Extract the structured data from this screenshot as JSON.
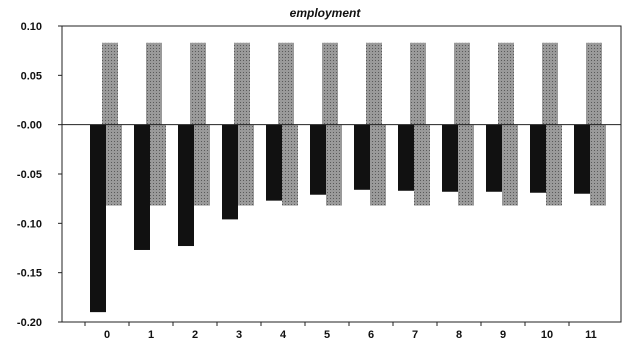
{
  "chart_data": {
    "type": "bar",
    "title": "employment",
    "xlabel": "",
    "ylabel": "",
    "categories": [
      "0",
      "1",
      "2",
      "3",
      "4",
      "5",
      "6",
      "7",
      "8",
      "9",
      "10",
      "11"
    ],
    "ylim": [
      -0.2,
      0.1
    ],
    "yticks": [
      "0.10",
      "0.05",
      "-0.00",
      "-0.05",
      "-0.10",
      "-0.15",
      "-0.20"
    ],
    "grid": false,
    "series": [
      {
        "color": "#111111",
        "values": [
          -0.19,
          -0.127,
          -0.123,
          -0.096,
          -0.077,
          -0.071,
          -0.066,
          -0.067,
          -0.068,
          -0.068,
          -0.069,
          -0.07
        ]
      },
      {
        "color": "#9a9a9a",
        "values": [
          0.083,
          0.083,
          0.083,
          0.083,
          0.083,
          0.083,
          0.083,
          0.083,
          0.083,
          0.083,
          0.083,
          0.083
        ]
      },
      {
        "color": "#9a9a9a",
        "values": [
          -0.082,
          -0.082,
          -0.082,
          -0.082,
          -0.082,
          -0.082,
          -0.082,
          -0.082,
          -0.082,
          -0.082,
          -0.082,
          -0.082
        ]
      }
    ]
  }
}
